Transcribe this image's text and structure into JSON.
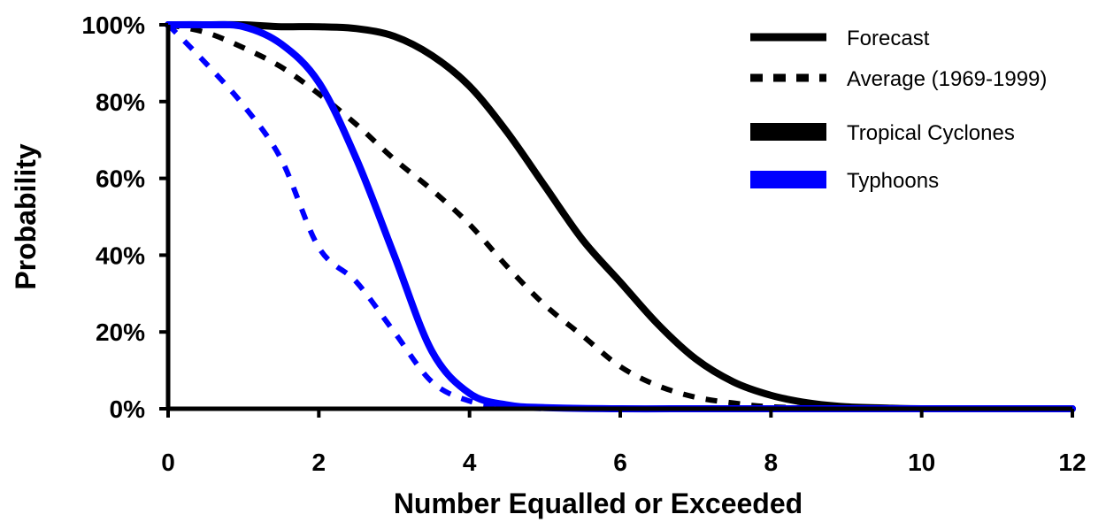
{
  "colors": {
    "tropical_cyclones": "#000000",
    "typhoons": "#0000ff",
    "axis": "#000000",
    "background": "#ffffff"
  },
  "legend": {
    "forecast": "Forecast",
    "average": "Average (1969-1999)",
    "tropical_cyclones": "Tropical Cyclones",
    "typhoons": "Typhoons"
  },
  "chart_data": {
    "type": "line",
    "title": "",
    "xlabel": "Number Equalled or Exceeded",
    "ylabel": "Probability",
    "xlim": [
      0,
      12
    ],
    "ylim": [
      0,
      100
    ],
    "xticks": [
      0,
      2,
      4,
      6,
      8,
      10,
      12
    ],
    "yticks": [
      0,
      20,
      40,
      60,
      80,
      100
    ],
    "xtick_labels": [
      "0",
      "2",
      "4",
      "6",
      "8",
      "10",
      "12"
    ],
    "ytick_labels": [
      "0%",
      "20%",
      "40%",
      "60%",
      "80%",
      "100%"
    ],
    "grid": false,
    "legend_position": "top-right",
    "series": [
      {
        "name": "Tropical Cyclones Forecast",
        "color": "#000000",
        "style": "solid",
        "x": [
          0,
          0.5,
          1,
          1.5,
          2,
          2.5,
          3,
          3.5,
          4,
          4.5,
          5,
          5.5,
          6,
          6.5,
          7,
          7.5,
          8,
          8.5,
          9,
          9.5,
          10,
          11,
          12
        ],
        "y": [
          100,
          100,
          100,
          99.5,
          99.5,
          99,
          97,
          92,
          84,
          72,
          58,
          44,
          33,
          22,
          13,
          7,
          3.5,
          1.5,
          0.5,
          0.2,
          0,
          0,
          0
        ]
      },
      {
        "name": "Tropical Cyclones Average (1969-1999)",
        "color": "#000000",
        "style": "dashed",
        "x": [
          0,
          0.5,
          1,
          1.5,
          2,
          2.5,
          3,
          3.5,
          4,
          4.5,
          5,
          5.5,
          6,
          6.5,
          7,
          7.5,
          8,
          9,
          10,
          11,
          12
        ],
        "y": [
          100,
          98,
          94,
          89,
          82,
          74,
          65,
          57,
          48,
          37,
          27,
          19,
          11,
          6,
          3,
          1.5,
          0.5,
          0,
          0,
          0,
          0
        ]
      },
      {
        "name": "Typhoons Forecast",
        "color": "#0000ff",
        "style": "solid",
        "x": [
          0,
          0.5,
          1,
          1.5,
          2,
          2.5,
          3,
          3.5,
          4,
          4.5,
          5,
          6,
          7,
          8,
          9,
          10,
          11,
          12
        ],
        "y": [
          100,
          100,
          99.5,
          95,
          85,
          65,
          40,
          15,
          4,
          1,
          0.3,
          0,
          0,
          0,
          0,
          0,
          0,
          0
        ]
      },
      {
        "name": "Typhoons Average (1969-1999)",
        "color": "#0000ff",
        "style": "dashed",
        "x": [
          0,
          0.5,
          1,
          1.5,
          2,
          2.5,
          3,
          3.5,
          4,
          4.5,
          5
        ],
        "y": [
          100,
          90,
          79,
          65,
          42,
          33,
          20,
          7,
          2,
          0.5,
          0
        ]
      }
    ]
  }
}
